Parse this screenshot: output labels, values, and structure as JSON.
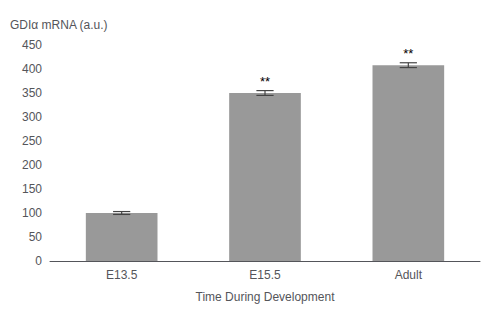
{
  "chart_data": {
    "type": "bar",
    "categories": [
      "E13.5",
      "E15.5",
      "Adult"
    ],
    "values": [
      100,
      350,
      408
    ],
    "errors": [
      3,
      5,
      5
    ],
    "significance": [
      null,
      "**",
      "**"
    ],
    "color": "#999999",
    "xlabel": "Time During Development",
    "ylabel": "GDIα mRNA (a.u.)",
    "ylim": [
      0,
      450
    ],
    "yticks": [
      0,
      50,
      100,
      150,
      200,
      250,
      300,
      350,
      400,
      450
    ],
    "grid": false
  }
}
